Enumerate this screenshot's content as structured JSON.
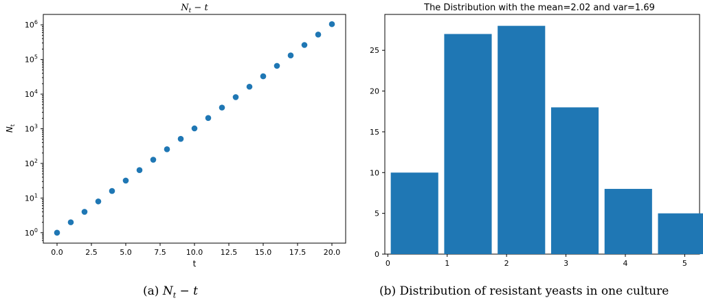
{
  "chart_data": [
    {
      "type": "scatter",
      "title": "N_t − t",
      "xlabel": "t",
      "ylabel": "N_t",
      "yscale": "log",
      "xlim": [
        -1,
        21
      ],
      "ylim": [
        0.5,
        2000000
      ],
      "x_ticks": [
        "0.0",
        "2.5",
        "5.0",
        "7.5",
        "10.0",
        "12.5",
        "15.0",
        "17.5",
        "20.0"
      ],
      "y_ticks": [
        "10^0",
        "10^1",
        "10^2",
        "10^3",
        "10^4",
        "10^5",
        "10^6"
      ],
      "color": "#1f77b4",
      "x": [
        0,
        1,
        2,
        3,
        4,
        5,
        6,
        7,
        8,
        9,
        10,
        11,
        12,
        13,
        14,
        15,
        16,
        17,
        18,
        19,
        20
      ],
      "y": [
        1,
        2,
        4,
        8,
        16,
        32,
        64,
        128,
        256,
        512,
        1024,
        2048,
        4096,
        8192,
        16384,
        32768,
        65536,
        131072,
        262144,
        524288,
        1048576
      ],
      "grid": false
    },
    {
      "type": "bar",
      "title": "The Distribution with the mean=2.02 and var=1.69",
      "xlabel": "",
      "ylabel": "",
      "xlim": [
        -0.05,
        5.25
      ],
      "ylim": [
        0,
        29.4
      ],
      "x_ticks": [
        "0",
        "1",
        "2",
        "3",
        "4",
        "5"
      ],
      "y_ticks": [
        "0",
        "5",
        "10",
        "15",
        "20",
        "25"
      ],
      "color": "#1f77b4",
      "bins": [
        [
          0.05,
          0.95
        ],
        [
          1.05,
          1.95
        ],
        [
          2.05,
          2.95
        ],
        [
          3.05,
          3.95
        ],
        [
          4.05,
          4.95
        ],
        [
          5.05,
          5.95
        ]
      ],
      "bars": [
        {
          "x_start": 0.05,
          "x_end": 0.85,
          "value": 10
        },
        {
          "x_start": 0.95,
          "x_end": 1.75,
          "value": 27
        },
        {
          "x_start": 1.85,
          "x_end": 2.65,
          "value": 28
        },
        {
          "x_start": 2.75,
          "x_end": 3.55,
          "value": 18
        },
        {
          "x_start": 3.65,
          "x_end": 4.45,
          "value": 8
        },
        {
          "x_start": 4.55,
          "x_end": 5.35,
          "value": 5
        }
      ],
      "values": [
        10,
        27,
        28,
        18,
        8,
        5
      ],
      "grid": false
    }
  ],
  "captions": {
    "a_prefix": "(a)",
    "a_math": "N_t − t",
    "b": "(b) Distribution of resistant yeasts in one culture"
  }
}
